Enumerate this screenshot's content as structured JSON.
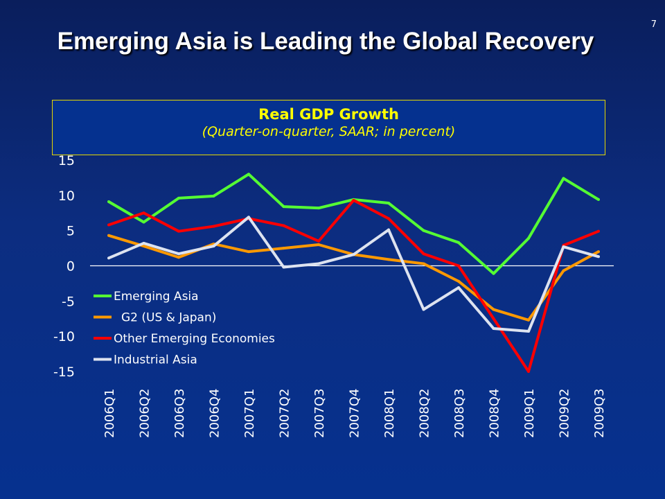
{
  "slide": {
    "title": "Emerging Asia is Leading the Global Recovery",
    "page_number": "7"
  },
  "chart_data": {
    "type": "line",
    "title": "Real GDP Growth",
    "subtitle": "(Quarter-on-quarter, SAAR; in percent)",
    "categories": [
      "2006Q1",
      "2006Q2",
      "2006Q3",
      "2006Q4",
      "2007Q1",
      "2007Q2",
      "2007Q3",
      "2007Q4",
      "2008Q1",
      "2008Q2",
      "2008Q3",
      "2008Q4",
      "2009Q1",
      "2009Q2",
      "2009Q3"
    ],
    "ylim": [
      -15,
      15
    ],
    "yticks": [
      "15",
      "10",
      "5",
      "0",
      "-5",
      "-10",
      "-15"
    ],
    "ytick_values": [
      15,
      10,
      5,
      0,
      -5,
      -10,
      -15
    ],
    "grid": false,
    "legend_placement": "bottom-left",
    "series": [
      {
        "name": "Emerging Asia",
        "color": "#55ff33",
        "values": [
          9.1,
          6.2,
          9.6,
          9.9,
          13.0,
          8.4,
          8.2,
          9.4,
          8.9,
          5.0,
          3.3,
          -1.1,
          3.9,
          12.4,
          9.4
        ]
      },
      {
        "name": "G2 (US & Japan)",
        "color": "#ff9900",
        "values": [
          4.3,
          2.8,
          1.2,
          3.1,
          2.0,
          2.5,
          3.0,
          1.6,
          0.9,
          0.3,
          -2.2,
          -6.2,
          -7.7,
          -0.7,
          2.0
        ]
      },
      {
        "name": "Other Emerging Economies",
        "color": "#ff0000",
        "values": [
          5.8,
          7.5,
          4.9,
          5.6,
          6.7,
          5.7,
          3.5,
          9.3,
          6.7,
          1.7,
          0.0,
          -7.5,
          -15.0,
          2.9,
          4.9
        ]
      },
      {
        "name": "Industrial Asia",
        "color": "#dde3f0",
        "values": [
          1.1,
          3.2,
          1.7,
          2.8,
          6.9,
          -0.2,
          0.3,
          1.6,
          5.1,
          -6.2,
          -3.1,
          -8.9,
          -9.3,
          2.7,
          1.3
        ]
      }
    ]
  }
}
